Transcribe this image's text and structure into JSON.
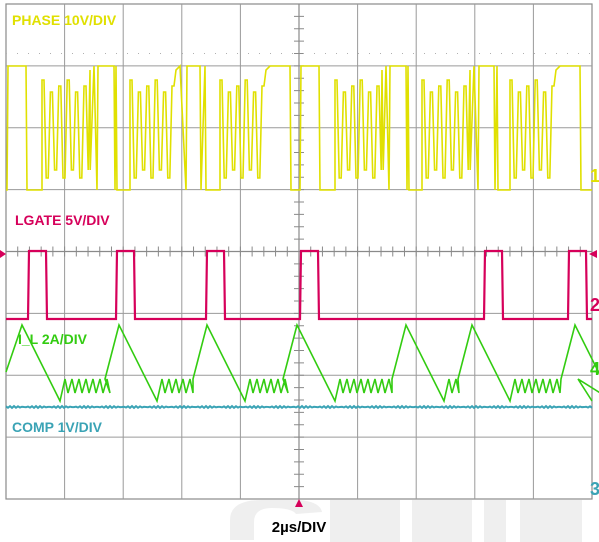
{
  "chart_data": {
    "type": "line",
    "title": "",
    "xlabel": "2µs/DIV",
    "grid": true,
    "grid_divisions": {
      "x": 10,
      "y": 8
    },
    "series": [
      {
        "name": "PHASE 10V/DIV",
        "color": "#e0e000",
        "channel_marker": "1"
      },
      {
        "name": "LGATE 5V/DIV",
        "color": "#d6005a",
        "channel_marker": "2"
      },
      {
        "name": "I_L 2A/DIV",
        "color": "#33cc11",
        "channel_marker": "4"
      },
      {
        "name": "COMP 1V/DIV",
        "color": "#3aa3b5",
        "channel_marker": "3"
      }
    ]
  },
  "background_watermark": "#cccccc"
}
